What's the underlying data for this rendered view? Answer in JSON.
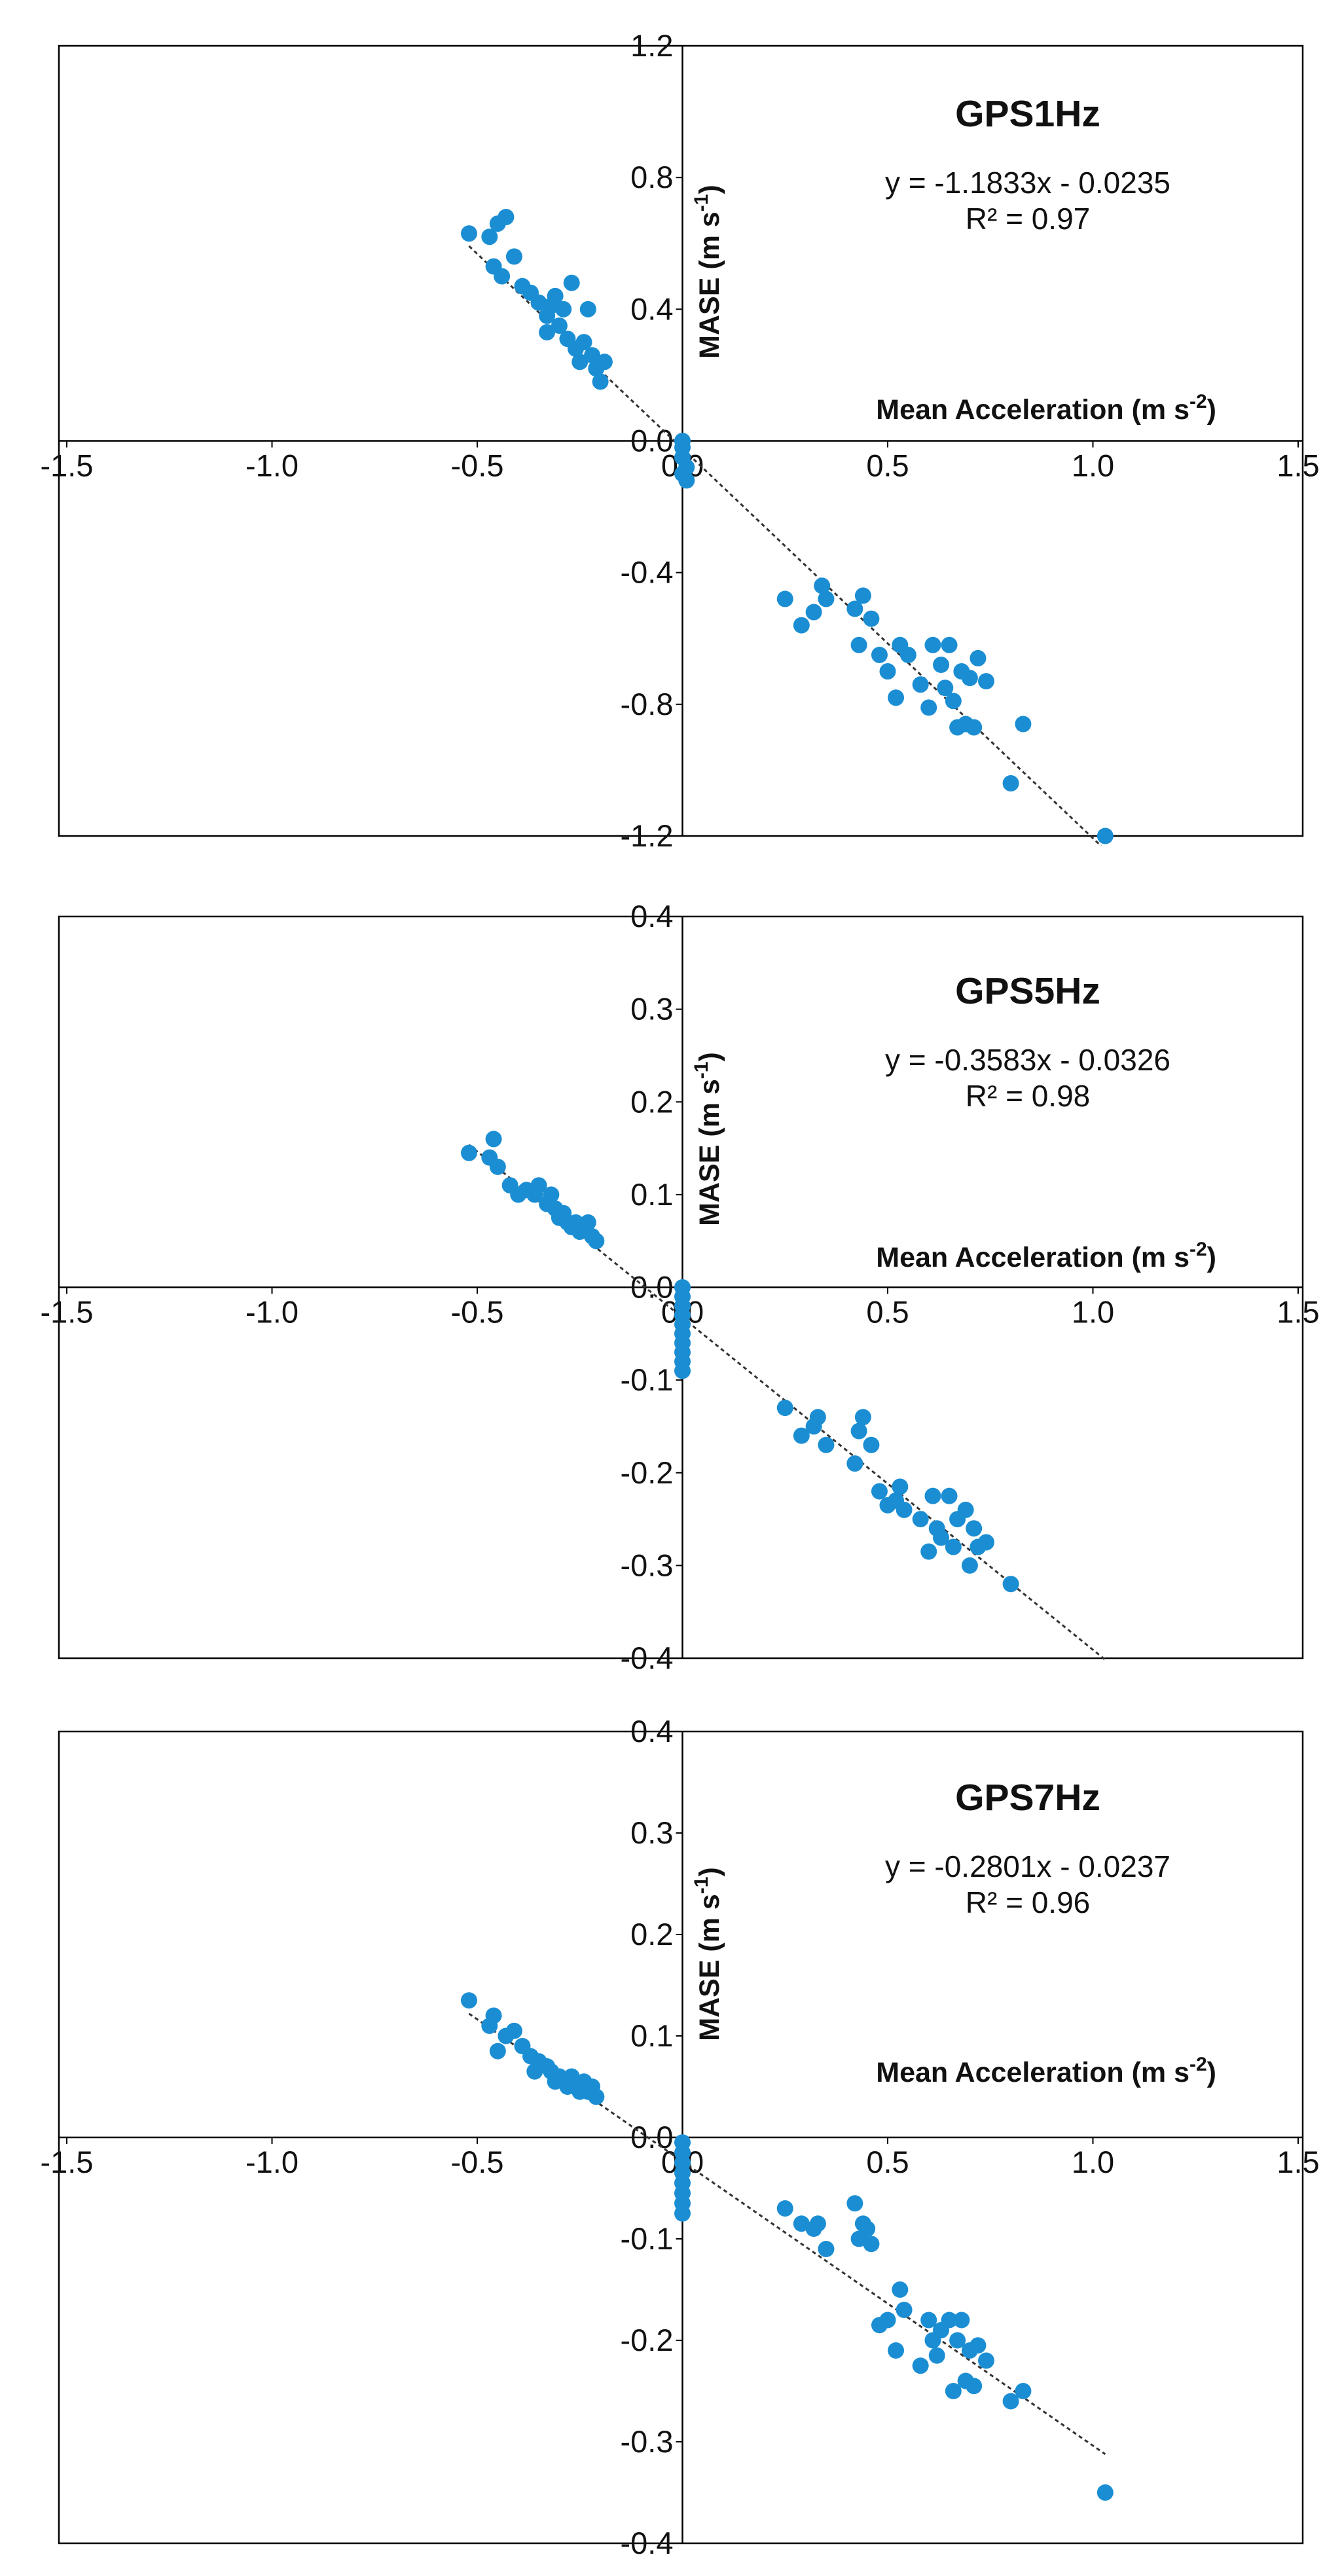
{
  "colors": {
    "marker": "#1b8ed3",
    "axis": "#000000",
    "trend": "#333333"
  },
  "chart_data": [
    {
      "type": "scatter",
      "title": "GPS1Hz",
      "xlabel": "Mean Acceleration (m s",
      "xlabel_sup": "-2",
      "xlabel_end": ")",
      "ylabel": "MASE (m s",
      "ylabel_sup": "-1",
      "ylabel_end": ")",
      "equation": "y = -1.1833x - 0.0235",
      "r2": "R² = 0.97",
      "xlim": [
        -1.5,
        1.5
      ],
      "ylim": [
        -1.2,
        1.2
      ],
      "xticks": [
        -1.5,
        -1.0,
        -0.5,
        0.0,
        0.5,
        1.0,
        1.5
      ],
      "xtick_labels": [
        "-1.5",
        "-1.0",
        "-0.5",
        "0.0",
        "0.5",
        "1.0",
        "1.5"
      ],
      "yticks": [
        1.2,
        0.8,
        0.4,
        0.0,
        -0.4,
        -0.8,
        -1.2
      ],
      "ytick_labels": [
        "1.2",
        "0.8",
        "0.4",
        "0.0",
        "-0.4",
        "-0.8",
        "-1.2"
      ],
      "trendline": {
        "slope": -1.1833,
        "intercept": -0.0235,
        "x_range": [
          -0.52,
          1.02
        ]
      },
      "points": [
        [
          -0.52,
          0.63
        ],
        [
          -0.47,
          0.62
        ],
        [
          -0.45,
          0.66
        ],
        [
          -0.43,
          0.68
        ],
        [
          -0.46,
          0.53
        ],
        [
          -0.44,
          0.5
        ],
        [
          -0.41,
          0.56
        ],
        [
          -0.39,
          0.47
        ],
        [
          -0.37,
          0.45
        ],
        [
          -0.35,
          0.42
        ],
        [
          -0.33,
          0.38
        ],
        [
          -0.32,
          0.41
        ],
        [
          -0.3,
          0.35
        ],
        [
          -0.29,
          0.4
        ],
        [
          -0.28,
          0.31
        ],
        [
          -0.27,
          0.48
        ],
        [
          -0.26,
          0.28
        ],
        [
          -0.25,
          0.24
        ],
        [
          -0.24,
          0.3
        ],
        [
          -0.23,
          0.4
        ],
        [
          -0.22,
          0.26
        ],
        [
          -0.21,
          0.22
        ],
        [
          -0.2,
          0.18
        ],
        [
          -0.19,
          0.24
        ],
        [
          -0.33,
          0.33
        ],
        [
          -0.31,
          0.44
        ],
        [
          0.0,
          0.0
        ],
        [
          0.0,
          -0.02
        ],
        [
          0.0,
          -0.05
        ],
        [
          0.01,
          -0.08
        ],
        [
          0.0,
          -0.1
        ],
        [
          0.01,
          -0.12
        ],
        [
          0.25,
          -0.48
        ],
        [
          0.29,
          -0.56
        ],
        [
          0.32,
          -0.52
        ],
        [
          0.34,
          -0.44
        ],
        [
          0.35,
          -0.48
        ],
        [
          0.42,
          -0.51
        ],
        [
          0.43,
          -0.62
        ],
        [
          0.44,
          -0.47
        ],
        [
          0.46,
          -0.54
        ],
        [
          0.48,
          -0.65
        ],
        [
          0.5,
          -0.7
        ],
        [
          0.52,
          -0.78
        ],
        [
          0.53,
          -0.62
        ],
        [
          0.55,
          -0.65
        ],
        [
          0.58,
          -0.74
        ],
        [
          0.6,
          -0.81
        ],
        [
          0.61,
          -0.62
        ],
        [
          0.63,
          -0.68
        ],
        [
          0.64,
          -0.75
        ],
        [
          0.65,
          -0.62
        ],
        [
          0.66,
          -0.79
        ],
        [
          0.67,
          -0.87
        ],
        [
          0.68,
          -0.7
        ],
        [
          0.69,
          -0.86
        ],
        [
          0.7,
          -0.72
        ],
        [
          0.71,
          -0.87
        ],
        [
          0.72,
          -0.66
        ],
        [
          0.74,
          -0.73
        ],
        [
          0.8,
          -1.04
        ],
        [
          0.83,
          -0.86
        ],
        [
          1.03,
          -1.2
        ]
      ]
    },
    {
      "type": "scatter",
      "title": "GPS5Hz",
      "xlabel": "Mean Acceleration (m s",
      "xlabel_sup": "-2",
      "xlabel_end": ")",
      "ylabel": "MASE (m s",
      "ylabel_sup": "-1",
      "ylabel_end": ")",
      "equation": "y = -0.3583x - 0.0326",
      "r2": "R² = 0.98",
      "xlim": [
        -1.5,
        1.5
      ],
      "ylim": [
        -0.4,
        0.4
      ],
      "xticks": [
        -1.5,
        -1.0,
        -0.5,
        0.0,
        0.5,
        1.0,
        1.5
      ],
      "xtick_labels": [
        "-1.5",
        "-1.0",
        "-0.5",
        "0.0",
        "0.5",
        "1.0",
        "1.5"
      ],
      "yticks": [
        0.4,
        0.3,
        0.2,
        0.1,
        0.0,
        -0.1,
        -0.2,
        -0.3,
        -0.4
      ],
      "ytick_labels": [
        "0.4",
        "0.3",
        "0.2",
        "0.1",
        "0.0",
        "-0.1",
        "-0.2",
        "-0.3",
        "-0.4"
      ],
      "trendline": {
        "slope": -0.3583,
        "intercept": -0.0326,
        "x_range": [
          -0.52,
          1.03
        ]
      },
      "points": [
        [
          -0.52,
          0.145
        ],
        [
          -0.47,
          0.14
        ],
        [
          -0.46,
          0.16
        ],
        [
          -0.45,
          0.13
        ],
        [
          -0.42,
          0.11
        ],
        [
          -0.4,
          0.1
        ],
        [
          -0.38,
          0.105
        ],
        [
          -0.36,
          0.1
        ],
        [
          -0.35,
          0.11
        ],
        [
          -0.33,
          0.09
        ],
        [
          -0.32,
          0.1
        ],
        [
          -0.31,
          0.085
        ],
        [
          -0.3,
          0.075
        ],
        [
          -0.29,
          0.08
        ],
        [
          -0.28,
          0.07
        ],
        [
          -0.27,
          0.065
        ],
        [
          -0.26,
          0.07
        ],
        [
          -0.25,
          0.06
        ],
        [
          -0.24,
          0.065
        ],
        [
          -0.23,
          0.07
        ],
        [
          -0.22,
          0.055
        ],
        [
          -0.21,
          0.05
        ],
        [
          0.0,
          0.0
        ],
        [
          0.0,
          -0.01
        ],
        [
          0.0,
          -0.02
        ],
        [
          0.0,
          -0.03
        ],
        [
          0.0,
          -0.04
        ],
        [
          0.0,
          -0.05
        ],
        [
          0.0,
          -0.06
        ],
        [
          0.0,
          -0.07
        ],
        [
          0.0,
          -0.08
        ],
        [
          0.0,
          -0.09
        ],
        [
          0.25,
          -0.13
        ],
        [
          0.29,
          -0.16
        ],
        [
          0.32,
          -0.15
        ],
        [
          0.33,
          -0.14
        ],
        [
          0.35,
          -0.17
        ],
        [
          0.42,
          -0.19
        ],
        [
          0.43,
          -0.155
        ],
        [
          0.44,
          -0.14
        ],
        [
          0.46,
          -0.17
        ],
        [
          0.48,
          -0.22
        ],
        [
          0.5,
          -0.235
        ],
        [
          0.52,
          -0.23
        ],
        [
          0.53,
          -0.215
        ],
        [
          0.54,
          -0.24
        ],
        [
          0.58,
          -0.25
        ],
        [
          0.6,
          -0.285
        ],
        [
          0.61,
          -0.225
        ],
        [
          0.62,
          -0.26
        ],
        [
          0.63,
          -0.27
        ],
        [
          0.65,
          -0.225
        ],
        [
          0.66,
          -0.28
        ],
        [
          0.67,
          -0.25
        ],
        [
          0.69,
          -0.24
        ],
        [
          0.7,
          -0.3
        ],
        [
          0.71,
          -0.26
        ],
        [
          0.72,
          -0.28
        ],
        [
          0.74,
          -0.275
        ],
        [
          0.8,
          -0.32
        ]
      ]
    },
    {
      "type": "scatter",
      "title": "GPS7Hz",
      "xlabel": "Mean Acceleration (m s",
      "xlabel_sup": "-2",
      "xlabel_end": ")",
      "ylabel": "MASE (m s",
      "ylabel_sup": "-1",
      "ylabel_end": ")",
      "equation": "y = -0.2801x - 0.0237",
      "r2": "R² = 0.96",
      "xlim": [
        -1.5,
        1.5
      ],
      "ylim": [
        -0.4,
        0.4
      ],
      "xticks": [
        -1.5,
        -1.0,
        -0.5,
        0.0,
        0.5,
        1.0,
        1.5
      ],
      "xtick_labels": [
        "-1.5",
        "-1.0",
        "-0.5",
        "0.0",
        "0.5",
        "1.0",
        "1.5"
      ],
      "yticks": [
        0.4,
        0.3,
        0.2,
        0.1,
        0.0,
        -0.1,
        -0.2,
        -0.3,
        -0.4
      ],
      "ytick_labels": [
        "0.4",
        "0.3",
        "0.2",
        "0.1",
        "0.0",
        "-0.1",
        "-0.2",
        "-0.3",
        "-0.4"
      ],
      "trendline": {
        "slope": -0.2801,
        "intercept": -0.0237,
        "x_range": [
          -0.52,
          1.03
        ]
      },
      "points": [
        [
          -0.52,
          0.135
        ],
        [
          -0.47,
          0.11
        ],
        [
          -0.46,
          0.12
        ],
        [
          -0.45,
          0.085
        ],
        [
          -0.43,
          0.1
        ],
        [
          -0.41,
          0.105
        ],
        [
          -0.39,
          0.09
        ],
        [
          -0.37,
          0.08
        ],
        [
          -0.36,
          0.065
        ],
        [
          -0.35,
          0.075
        ],
        [
          -0.33,
          0.07
        ],
        [
          -0.32,
          0.065
        ],
        [
          -0.31,
          0.055
        ],
        [
          -0.3,
          0.06
        ],
        [
          -0.29,
          0.055
        ],
        [
          -0.28,
          0.05
        ],
        [
          -0.27,
          0.06
        ],
        [
          -0.26,
          0.05
        ],
        [
          -0.25,
          0.045
        ],
        [
          -0.24,
          0.055
        ],
        [
          -0.23,
          0.045
        ],
        [
          -0.22,
          0.05
        ],
        [
          -0.21,
          0.04
        ],
        [
          0.0,
          -0.005
        ],
        [
          0.0,
          -0.015
        ],
        [
          0.0,
          -0.025
        ],
        [
          0.0,
          -0.035
        ],
        [
          0.0,
          -0.045
        ],
        [
          0.0,
          -0.055
        ],
        [
          0.0,
          -0.065
        ],
        [
          0.0,
          -0.075
        ],
        [
          0.25,
          -0.07
        ],
        [
          0.29,
          -0.085
        ],
        [
          0.32,
          -0.09
        ],
        [
          0.33,
          -0.085
        ],
        [
          0.35,
          -0.11
        ],
        [
          0.42,
          -0.065
        ],
        [
          0.43,
          -0.1
        ],
        [
          0.44,
          -0.085
        ],
        [
          0.45,
          -0.09
        ],
        [
          0.46,
          -0.105
        ],
        [
          0.48,
          -0.185
        ],
        [
          0.5,
          -0.18
        ],
        [
          0.52,
          -0.21
        ],
        [
          0.53,
          -0.15
        ],
        [
          0.54,
          -0.17
        ],
        [
          0.58,
          -0.225
        ],
        [
          0.6,
          -0.18
        ],
        [
          0.61,
          -0.2
        ],
        [
          0.62,
          -0.215
        ],
        [
          0.63,
          -0.19
        ],
        [
          0.65,
          -0.18
        ],
        [
          0.66,
          -0.25
        ],
        [
          0.67,
          -0.2
        ],
        [
          0.68,
          -0.18
        ],
        [
          0.69,
          -0.24
        ],
        [
          0.7,
          -0.21
        ],
        [
          0.71,
          -0.245
        ],
        [
          0.72,
          -0.205
        ],
        [
          0.74,
          -0.22
        ],
        [
          0.8,
          -0.26
        ],
        [
          0.83,
          -0.25
        ],
        [
          1.03,
          -0.35
        ]
      ]
    }
  ]
}
